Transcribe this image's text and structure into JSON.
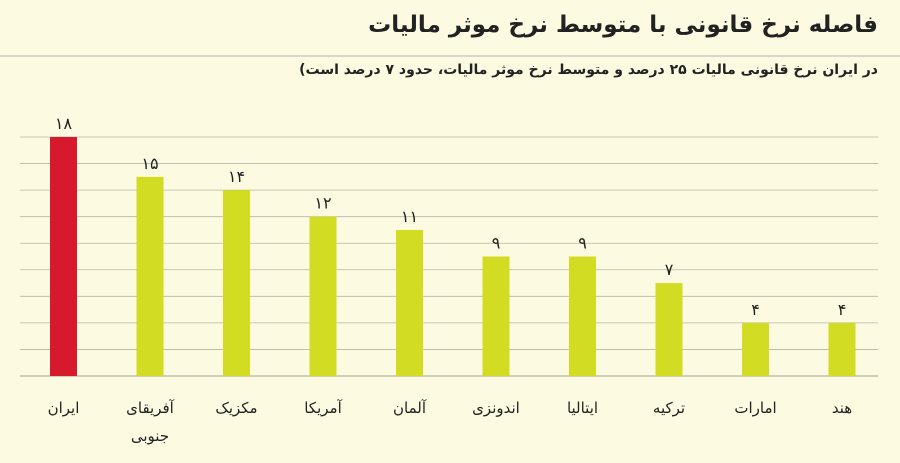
{
  "title": "فاصله نرخ قانونی با متوسط نرخ موثر مالیات",
  "subtitle": "در ایران نرخ قانونی مالیات ۲۵ درصد و متوسط نرخ موثر مالیات، حدود ۷ درصد است)",
  "colors": {
    "highlight": "#d7192e",
    "bar": "#d2dc22",
    "grid": "#b5b5a5",
    "background": "#fcfbe2"
  },
  "chart_data": {
    "type": "bar",
    "categories": [
      "ایران",
      "آفریقای جنوبی",
      "مکزیک",
      "آمریکا",
      "آلمان",
      "اندونزی",
      "ایتالیا",
      "ترکیه",
      "امارات",
      "هند"
    ],
    "category_lines": [
      [
        "ایران"
      ],
      [
        "آفریقای",
        "جنوبی"
      ],
      [
        "مکزیک"
      ],
      [
        "آمریکا"
      ],
      [
        "آلمان"
      ],
      [
        "اندونزی"
      ],
      [
        "ایتالیا"
      ],
      [
        "ترکیه"
      ],
      [
        "امارات"
      ],
      [
        "هند"
      ]
    ],
    "values": [
      18,
      15,
      14,
      12,
      11,
      9,
      9,
      7,
      4,
      4
    ],
    "value_labels": [
      "۱۸",
      "۱۵",
      "۱۴",
      "۱۲",
      "۱۱",
      "۹",
      "۹",
      "۷",
      "۴",
      "۴"
    ],
    "highlight_index": 0,
    "ylim": [
      0,
      18
    ],
    "grid": true,
    "title": "فاصله نرخ قانونی با متوسط نرخ موثر مالیات",
    "xlabel": "",
    "ylabel": ""
  }
}
